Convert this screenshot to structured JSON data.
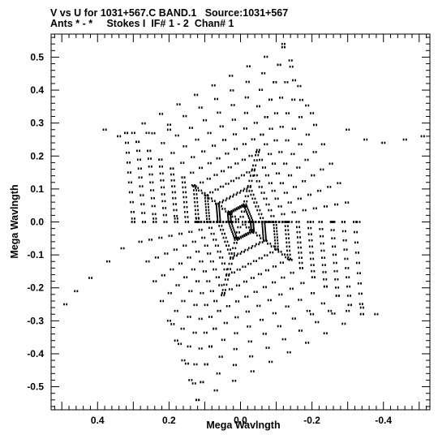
{
  "header": {
    "line1": "V vs U for 1031+567.C BAND.1   Source:1031+567",
    "line2": "Ants * - *     Stokes I  IF# 1 - 2  Chan# 1"
  },
  "chart_data": {
    "type": "scatter",
    "xlabel": "Mega Wavlngth",
    "ylabel": "Mega Wavlngth",
    "xlim": [
      0.53,
      -0.53
    ],
    "ylim": [
      -0.57,
      0.57
    ],
    "x_direction": "reversed",
    "x_ticks": [
      0.4,
      0.2,
      0.0,
      -0.2,
      -0.4
    ],
    "x_tick_labels": [
      "0.4",
      "0.2",
      "0.0",
      "-0.2",
      "-0.4"
    ],
    "y_ticks": [
      0.5,
      0.4,
      0.3,
      0.2,
      0.1,
      0.0,
      -0.1,
      -0.2,
      -0.3,
      -0.4,
      -0.5
    ],
    "y_tick_labels": [
      "0.5",
      "0.4",
      "0.3",
      "0.2",
      "0.1",
      "0.0",
      "-0.1",
      "-0.2",
      "-0.3",
      "-0.4",
      "-0.5"
    ],
    "grid": false,
    "marker_color": "#000000",
    "arms": [
      {
        "angle_deg": 0,
        "u_end": -0.32,
        "v_end": 0.0
      },
      {
        "angle_deg": 60,
        "u_end": -0.12,
        "v_end": 0.53
      },
      {
        "angle_deg": 120,
        "u_end": 0.32,
        "v_end": 0.27
      },
      {
        "angle_deg": 180,
        "u_end": 0.3,
        "v_end": 0.0
      },
      {
        "angle_deg": 240,
        "u_end": 0.12,
        "v_end": -0.54
      },
      {
        "angle_deg": 300,
        "u_end": -0.34,
        "v_end": -0.28
      }
    ],
    "points": [
      [
        -0.3,
        0.28
      ],
      [
        -0.35,
        0.25
      ],
      [
        -0.4,
        0.24
      ],
      [
        -0.46,
        0.25
      ],
      [
        -0.51,
        0.26
      ],
      [
        -0.12,
        0.54
      ],
      [
        -0.14,
        0.49
      ],
      [
        -0.15,
        0.43
      ],
      [
        -0.17,
        0.37
      ],
      [
        -0.2,
        0.33
      ],
      [
        0.38,
        0.28
      ],
      [
        0.34,
        0.26
      ],
      [
        0.3,
        0.27
      ],
      [
        0.26,
        0.27
      ],
      [
        0.2,
        0.28
      ],
      [
        0.49,
        -0.25
      ],
      [
        0.46,
        -0.21
      ],
      [
        0.42,
        -0.17
      ],
      [
        0.37,
        -0.12
      ],
      [
        0.33,
        -0.08
      ],
      [
        0.12,
        -0.54
      ],
      [
        0.13,
        -0.49
      ],
      [
        0.15,
        -0.43
      ],
      [
        0.17,
        -0.37
      ],
      [
        0.19,
        -0.31
      ],
      [
        -0.38,
        -0.28
      ],
      [
        -0.34,
        -0.26
      ],
      [
        -0.3,
        -0.27
      ],
      [
        -0.25,
        -0.27
      ],
      [
        -0.2,
        -0.28
      ],
      [
        -0.33,
        0.0
      ],
      [
        -0.26,
        0.0
      ],
      [
        -0.2,
        0.0
      ],
      [
        -0.14,
        0.0
      ],
      [
        -0.08,
        0.0
      ],
      [
        0.3,
        0.01
      ],
      [
        0.24,
        0.01
      ],
      [
        0.18,
        0.01
      ],
      [
        0.12,
        0.01
      ],
      [
        0.06,
        0.0
      ]
    ]
  }
}
